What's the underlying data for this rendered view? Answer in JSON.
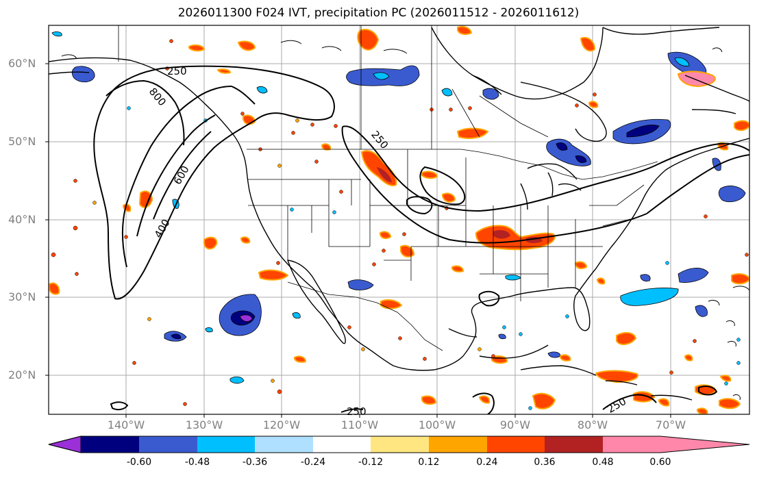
{
  "title": "2026011300 F024 IVT, precipitation PC (2026011512 - 2026011612)",
  "latitude_labels": [
    "60°N",
    "50°N",
    "40°N",
    "30°N",
    "20°N"
  ],
  "longitude_labels": [
    "140°W",
    "130°W",
    "120°W",
    "110°W",
    "100°W",
    "90°W",
    "80°W",
    "70°W"
  ],
  "contour_labels": [
    "250",
    "800",
    "600",
    "400",
    "250",
    "250",
    "250"
  ],
  "colorbar": {
    "tick_labels": [
      "-0.60",
      "-0.48",
      "-0.36",
      "-0.24",
      "-0.12",
      "0.12",
      "0.24",
      "0.36",
      "0.48",
      "0.60"
    ],
    "colors": [
      "#9b30d9",
      "#00007f",
      "#3a5bd0",
      "#00bfff",
      "#b0e0ff",
      "#ffffff",
      "#ffe680",
      "#ffa500",
      "#ff4500",
      "#b22222",
      "#ff88aa"
    ]
  },
  "field_colors": {
    "neg_strong": "#9b30d9",
    "neg_dark": "#00007f",
    "neg_mid": "#3a5bd0",
    "neg_light": "#00bfff",
    "pos_light": "#ffe680",
    "pos_mid": "#ffa500",
    "pos_strong": "#ff4500",
    "pos_dark": "#b22222"
  }
}
